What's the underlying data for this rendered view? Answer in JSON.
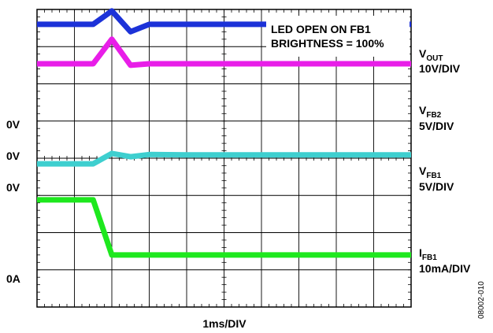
{
  "chart_data": {
    "type": "line",
    "title": "LED OPEN ON FB1",
    "subtitle": "BRIGHTNESS = 100%",
    "xlabel": "1ms/DIV",
    "x_divisions": 10,
    "y_divisions": 8,
    "x": [
      0,
      1,
      1.5,
      2,
      2.5,
      3,
      4,
      5,
      6,
      7,
      8,
      9,
      10
    ],
    "series": [
      {
        "name": "V",
        "subscript": "OUT",
        "scale": "10V/DIV",
        "color": "#1c32d8",
        "values": [
          3.6,
          3.6,
          3.6,
          3.96,
          3.4,
          3.6,
          3.6,
          3.6,
          3.6,
          3.6,
          3.6,
          3.6,
          3.6
        ]
      },
      {
        "name": "V",
        "subscript": "FB2",
        "scale": "5V/DIV",
        "color": "#e81ee8",
        "values": [
          2.54,
          2.54,
          2.54,
          3.2,
          2.5,
          2.54,
          2.54,
          2.54,
          2.54,
          2.54,
          2.54,
          2.54,
          2.54
        ]
      },
      {
        "name": "V",
        "subscript": "FB1",
        "scale": "5V/DIV",
        "color": "#3ecfcf",
        "values": [
          -0.15,
          -0.15,
          -0.15,
          0.13,
          0.04,
          0.1,
          0.09,
          0.09,
          0.09,
          0.09,
          0.09,
          0.09,
          0.09
        ]
      },
      {
        "name": "I",
        "subscript": "FB1",
        "scale": "10mA/DIV",
        "color": "#1ee81e",
        "values": [
          -1.12,
          -1.12,
          -1.12,
          -2.6,
          -2.6,
          -2.6,
          -2.6,
          -2.6,
          -2.6,
          -2.6,
          -2.6,
          -2.6,
          -2.6
        ]
      }
    ],
    "ground_markers": [
      "0V",
      "0V",
      "0V",
      "0A"
    ],
    "figure_id": "08002-010"
  }
}
